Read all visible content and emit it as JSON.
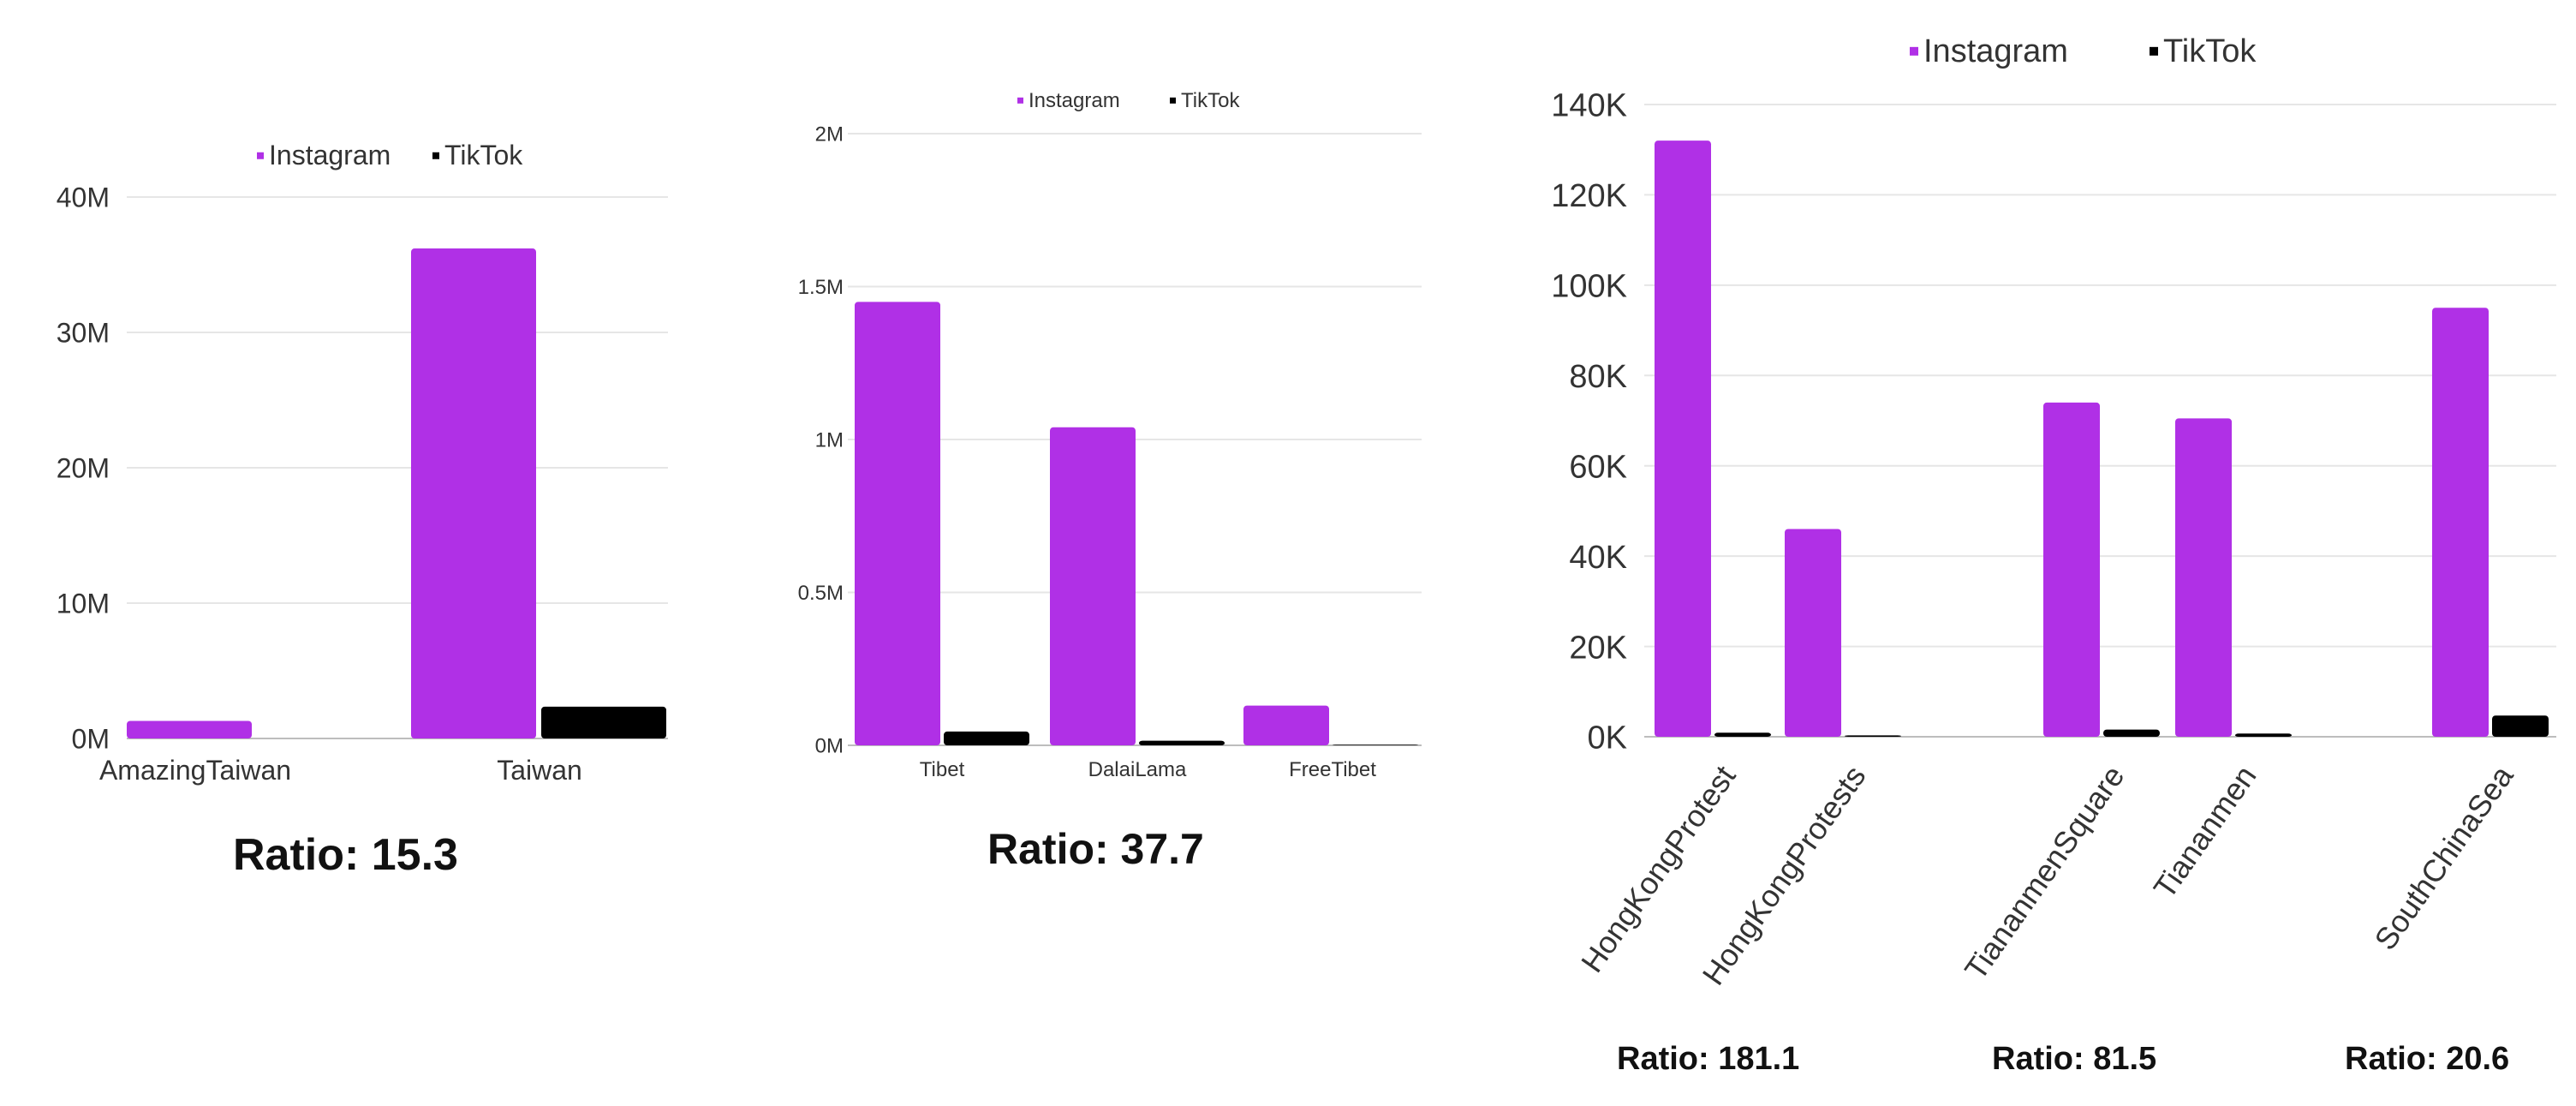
{
  "colors": {
    "instagram": "#b030e6",
    "tiktok": "#000000",
    "grid": "#e6e6e6",
    "text": "#333333"
  },
  "chart_data": [
    {
      "type": "bar",
      "categories": [
        "AmazingTaiwan",
        "Taiwan"
      ],
      "series": [
        {
          "name": "Instagram",
          "values": [
            1300000,
            36200000
          ]
        },
        {
          "name": "TikTok",
          "values": [
            0,
            2350000
          ]
        }
      ],
      "y_ticks": [
        0,
        10000000,
        20000000,
        30000000,
        40000000
      ],
      "y_tick_labels": [
        "0M",
        "10M",
        "20M",
        "30M",
        "40M"
      ],
      "ylim": [
        0,
        40000000
      ],
      "legend": "top",
      "grid": true,
      "ratio": "Ratio: 15.3"
    },
    {
      "type": "bar",
      "categories": [
        "Tibet",
        "DalaiLama",
        "FreeTibet"
      ],
      "series": [
        {
          "name": "Instagram",
          "values": [
            1450000,
            1040000,
            130000
          ]
        },
        {
          "name": "TikTok",
          "values": [
            45000,
            15000,
            2000
          ]
        }
      ],
      "y_ticks": [
        0,
        500000,
        1000000,
        1500000,
        2000000
      ],
      "y_tick_labels": [
        "0M",
        "0.5M",
        "1M",
        "1.5M",
        "2M"
      ],
      "ylim": [
        0,
        2000000
      ],
      "legend": "top",
      "grid": true,
      "ratio": "Ratio: 37.7"
    },
    {
      "type": "bar",
      "categories": [
        "HongKongProtest",
        "HongKongProtests",
        "TiananmenSquare",
        "Tiananmen",
        "SouthChinaSea"
      ],
      "series": [
        {
          "name": "Instagram",
          "values": [
            132000,
            46000,
            74000,
            70500,
            95000
          ]
        },
        {
          "name": "TikTok",
          "values": [
            900,
            300,
            1600,
            700,
            4700
          ]
        }
      ],
      "y_ticks": [
        0,
        20000,
        40000,
        60000,
        80000,
        100000,
        120000,
        140000
      ],
      "y_tick_labels": [
        "0K",
        "20K",
        "40K",
        "60K",
        "80K",
        "100K",
        "120K",
        "140K"
      ],
      "ylim": [
        0,
        140000
      ],
      "legend": "top",
      "grid": true,
      "ratios": [
        "Ratio: 181.1",
        "Ratio: 81.5",
        "Ratio: 20.6"
      ]
    }
  ]
}
